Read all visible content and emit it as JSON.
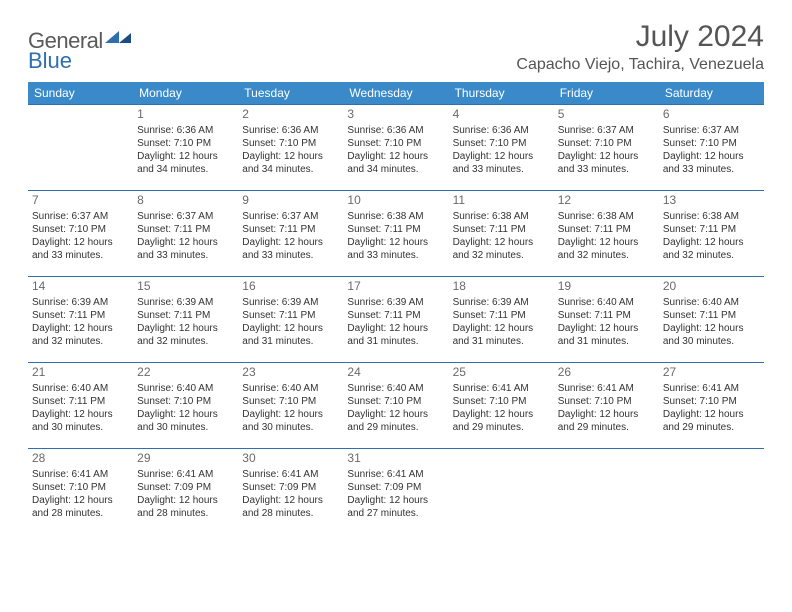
{
  "logo": {
    "text1": "General",
    "text2": "Blue"
  },
  "title": "July 2024",
  "location": "Capacho Viejo, Tachira, Venezuela",
  "colors": {
    "header_bg": "#3a8ac9",
    "header_text": "#ffffff",
    "cell_border": "#2f6fb0",
    "text": "#333333",
    "daynum": "#6a6a6a",
    "logo_gray": "#5a5a5a",
    "logo_blue": "#2f6fb0"
  },
  "weekdays": [
    "Sunday",
    "Monday",
    "Tuesday",
    "Wednesday",
    "Thursday",
    "Friday",
    "Saturday"
  ],
  "weeks": [
    [
      null,
      {
        "n": "1",
        "sr": "Sunrise: 6:36 AM",
        "ss": "Sunset: 7:10 PM",
        "d1": "Daylight: 12 hours",
        "d2": "and 34 minutes."
      },
      {
        "n": "2",
        "sr": "Sunrise: 6:36 AM",
        "ss": "Sunset: 7:10 PM",
        "d1": "Daylight: 12 hours",
        "d2": "and 34 minutes."
      },
      {
        "n": "3",
        "sr": "Sunrise: 6:36 AM",
        "ss": "Sunset: 7:10 PM",
        "d1": "Daylight: 12 hours",
        "d2": "and 34 minutes."
      },
      {
        "n": "4",
        "sr": "Sunrise: 6:36 AM",
        "ss": "Sunset: 7:10 PM",
        "d1": "Daylight: 12 hours",
        "d2": "and 33 minutes."
      },
      {
        "n": "5",
        "sr": "Sunrise: 6:37 AM",
        "ss": "Sunset: 7:10 PM",
        "d1": "Daylight: 12 hours",
        "d2": "and 33 minutes."
      },
      {
        "n": "6",
        "sr": "Sunrise: 6:37 AM",
        "ss": "Sunset: 7:10 PM",
        "d1": "Daylight: 12 hours",
        "d2": "and 33 minutes."
      }
    ],
    [
      {
        "n": "7",
        "sr": "Sunrise: 6:37 AM",
        "ss": "Sunset: 7:10 PM",
        "d1": "Daylight: 12 hours",
        "d2": "and 33 minutes."
      },
      {
        "n": "8",
        "sr": "Sunrise: 6:37 AM",
        "ss": "Sunset: 7:11 PM",
        "d1": "Daylight: 12 hours",
        "d2": "and 33 minutes."
      },
      {
        "n": "9",
        "sr": "Sunrise: 6:37 AM",
        "ss": "Sunset: 7:11 PM",
        "d1": "Daylight: 12 hours",
        "d2": "and 33 minutes."
      },
      {
        "n": "10",
        "sr": "Sunrise: 6:38 AM",
        "ss": "Sunset: 7:11 PM",
        "d1": "Daylight: 12 hours",
        "d2": "and 33 minutes."
      },
      {
        "n": "11",
        "sr": "Sunrise: 6:38 AM",
        "ss": "Sunset: 7:11 PM",
        "d1": "Daylight: 12 hours",
        "d2": "and 32 minutes."
      },
      {
        "n": "12",
        "sr": "Sunrise: 6:38 AM",
        "ss": "Sunset: 7:11 PM",
        "d1": "Daylight: 12 hours",
        "d2": "and 32 minutes."
      },
      {
        "n": "13",
        "sr": "Sunrise: 6:38 AM",
        "ss": "Sunset: 7:11 PM",
        "d1": "Daylight: 12 hours",
        "d2": "and 32 minutes."
      }
    ],
    [
      {
        "n": "14",
        "sr": "Sunrise: 6:39 AM",
        "ss": "Sunset: 7:11 PM",
        "d1": "Daylight: 12 hours",
        "d2": "and 32 minutes."
      },
      {
        "n": "15",
        "sr": "Sunrise: 6:39 AM",
        "ss": "Sunset: 7:11 PM",
        "d1": "Daylight: 12 hours",
        "d2": "and 32 minutes."
      },
      {
        "n": "16",
        "sr": "Sunrise: 6:39 AM",
        "ss": "Sunset: 7:11 PM",
        "d1": "Daylight: 12 hours",
        "d2": "and 31 minutes."
      },
      {
        "n": "17",
        "sr": "Sunrise: 6:39 AM",
        "ss": "Sunset: 7:11 PM",
        "d1": "Daylight: 12 hours",
        "d2": "and 31 minutes."
      },
      {
        "n": "18",
        "sr": "Sunrise: 6:39 AM",
        "ss": "Sunset: 7:11 PM",
        "d1": "Daylight: 12 hours",
        "d2": "and 31 minutes."
      },
      {
        "n": "19",
        "sr": "Sunrise: 6:40 AM",
        "ss": "Sunset: 7:11 PM",
        "d1": "Daylight: 12 hours",
        "d2": "and 31 minutes."
      },
      {
        "n": "20",
        "sr": "Sunrise: 6:40 AM",
        "ss": "Sunset: 7:11 PM",
        "d1": "Daylight: 12 hours",
        "d2": "and 30 minutes."
      }
    ],
    [
      {
        "n": "21",
        "sr": "Sunrise: 6:40 AM",
        "ss": "Sunset: 7:11 PM",
        "d1": "Daylight: 12 hours",
        "d2": "and 30 minutes."
      },
      {
        "n": "22",
        "sr": "Sunrise: 6:40 AM",
        "ss": "Sunset: 7:10 PM",
        "d1": "Daylight: 12 hours",
        "d2": "and 30 minutes."
      },
      {
        "n": "23",
        "sr": "Sunrise: 6:40 AM",
        "ss": "Sunset: 7:10 PM",
        "d1": "Daylight: 12 hours",
        "d2": "and 30 minutes."
      },
      {
        "n": "24",
        "sr": "Sunrise: 6:40 AM",
        "ss": "Sunset: 7:10 PM",
        "d1": "Daylight: 12 hours",
        "d2": "and 29 minutes."
      },
      {
        "n": "25",
        "sr": "Sunrise: 6:41 AM",
        "ss": "Sunset: 7:10 PM",
        "d1": "Daylight: 12 hours",
        "d2": "and 29 minutes."
      },
      {
        "n": "26",
        "sr": "Sunrise: 6:41 AM",
        "ss": "Sunset: 7:10 PM",
        "d1": "Daylight: 12 hours",
        "d2": "and 29 minutes."
      },
      {
        "n": "27",
        "sr": "Sunrise: 6:41 AM",
        "ss": "Sunset: 7:10 PM",
        "d1": "Daylight: 12 hours",
        "d2": "and 29 minutes."
      }
    ],
    [
      {
        "n": "28",
        "sr": "Sunrise: 6:41 AM",
        "ss": "Sunset: 7:10 PM",
        "d1": "Daylight: 12 hours",
        "d2": "and 28 minutes."
      },
      {
        "n": "29",
        "sr": "Sunrise: 6:41 AM",
        "ss": "Sunset: 7:09 PM",
        "d1": "Daylight: 12 hours",
        "d2": "and 28 minutes."
      },
      {
        "n": "30",
        "sr": "Sunrise: 6:41 AM",
        "ss": "Sunset: 7:09 PM",
        "d1": "Daylight: 12 hours",
        "d2": "and 28 minutes."
      },
      {
        "n": "31",
        "sr": "Sunrise: 6:41 AM",
        "ss": "Sunset: 7:09 PM",
        "d1": "Daylight: 12 hours",
        "d2": "and 27 minutes."
      },
      null,
      null,
      null
    ]
  ]
}
